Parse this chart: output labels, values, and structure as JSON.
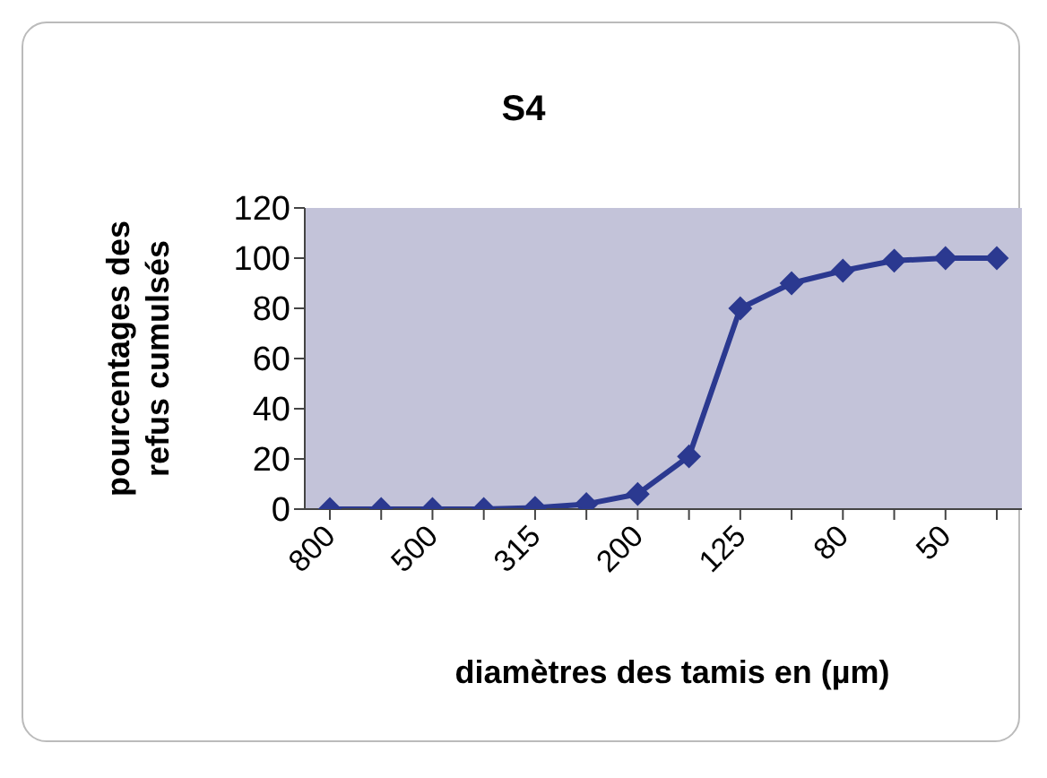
{
  "chart_data": {
    "type": "line",
    "title": "S4",
    "xlabel": "diamètres des tamis en (µm)",
    "ylabel": "pourcentages des refus cumulsés",
    "categories": [
      "800",
      null,
      "500",
      null,
      "315",
      null,
      "200",
      null,
      "125",
      null,
      "80",
      null,
      "50",
      null
    ],
    "series": [
      {
        "color": "#2b3990",
        "values": [
          0,
          0,
          0,
          0,
          0.5,
          2,
          6,
          21,
          80,
          90,
          95,
          99,
          100,
          100
        ]
      }
    ],
    "ylim": [
      0,
      120
    ],
    "yticks": [
      0,
      20,
      40,
      60,
      80,
      100,
      120
    ],
    "grid": false,
    "legend": false,
    "marker": "diamond",
    "line_style": "solid"
  }
}
